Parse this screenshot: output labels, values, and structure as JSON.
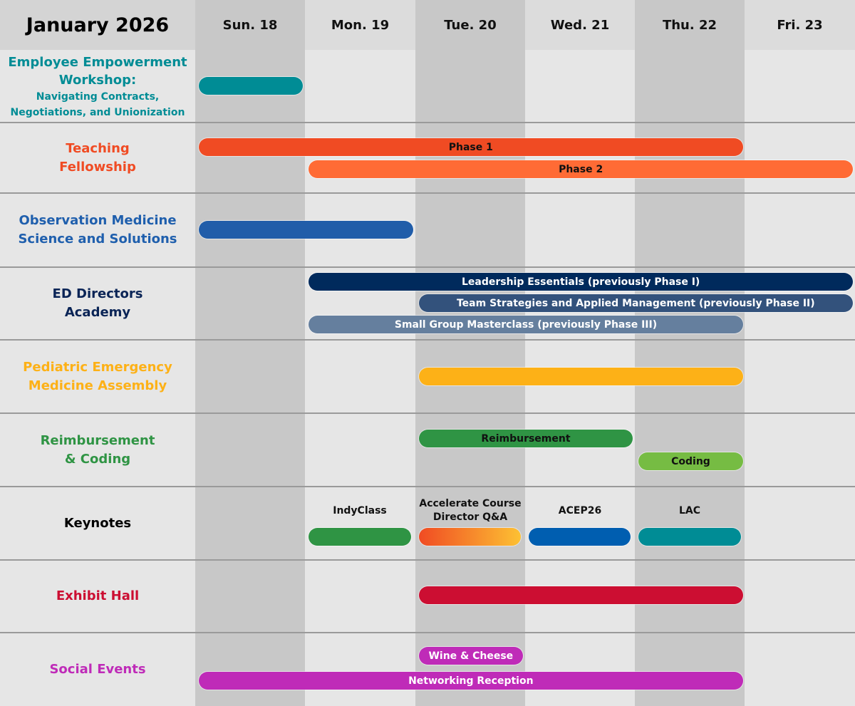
{
  "title": "January 2026",
  "days": [
    "Sun. 18",
    "Mon. 19",
    "Tue. 20",
    "Wed. 21",
    "Thu. 22",
    "Fri. 23"
  ],
  "colors": {
    "light_column": "#e6e6e6",
    "dark_column": "#c8c8c8",
    "header_light": "#dcdcdc",
    "header_left": "#d4d4d4",
    "separator": "#9a9a9a"
  },
  "rows": [
    {
      "label_lines": [
        "Employee Empowerment",
        "Workshop:"
      ],
      "sub_lines": [
        "Navigating Contracts,",
        "Negotiations, and Unionization"
      ],
      "color": "#008c95",
      "bars": [
        {
          "label": "",
          "start": 0,
          "end": 0,
          "color": "#008c95",
          "text_color": "#fff"
        }
      ]
    },
    {
      "label_lines": [
        "Teaching",
        "Fellowship"
      ],
      "color": "#f04b23",
      "bars": [
        {
          "label": "Phase 1",
          "start": 0,
          "end": 4,
          "color": "#f04b23",
          "text_color": "#111"
        },
        {
          "label": "Phase 2",
          "start": 1,
          "end": 5,
          "color": "#ff6b35",
          "text_color": "#111"
        }
      ]
    },
    {
      "label_lines": [
        "Observation Medicine",
        "Science and Solutions"
      ],
      "color": "#1f5fad",
      "bars": [
        {
          "label": "",
          "start": 0,
          "end": 1,
          "color": "#215da9",
          "text_color": "#fff"
        }
      ]
    },
    {
      "label_lines": [
        "ED Directors",
        "Academy"
      ],
      "color": "#0a2456",
      "bars": [
        {
          "label": "Leadership Essentials (previously Phase I)",
          "start": 1,
          "end": 5,
          "color": "#002a5c",
          "text_color": "#fff"
        },
        {
          "label": "Team Strategies and Applied Management (previously Phase II)",
          "start": 2,
          "end": 5,
          "color": "#33527c",
          "text_color": "#fff"
        },
        {
          "label": "Small Group Masterclass (previously Phase III)",
          "start": 1,
          "end": 4,
          "color": "#657f9e",
          "text_color": "#fff"
        }
      ]
    },
    {
      "label_lines": [
        "Pediatric Emergency",
        "Medicine Assembly"
      ],
      "color": "#fdb117",
      "bars": [
        {
          "label": "",
          "start": 2,
          "end": 4,
          "color": "#fdb117",
          "text_color": "#111"
        }
      ]
    },
    {
      "label_lines": [
        "Reimbursement",
        "& Coding"
      ],
      "color": "#2f9444",
      "bars": [
        {
          "label": "Reimbursement",
          "start": 2,
          "end": 3,
          "color": "#2f9444",
          "text_color": "#111"
        },
        {
          "label": "Coding",
          "start": 4,
          "end": 4,
          "color": "#76bc43",
          "text_color": "#111"
        }
      ]
    },
    {
      "label_lines": [
        "Keynotes"
      ],
      "color": "#000000",
      "bars": [
        {
          "label": "IndyClass",
          "start": 1,
          "end": 1,
          "color": "#2f9444",
          "text_color": "#111"
        },
        {
          "label": "Accelerate Course Director Q&A",
          "start": 2,
          "end": 2,
          "color": "linear-gradient(90deg,#f04b23,#fdc133)",
          "text_color": "#111"
        },
        {
          "label": "ACEP26",
          "start": 3,
          "end": 3,
          "color": "#005eb0",
          "text_color": "#111"
        },
        {
          "label": "LAC",
          "start": 4,
          "end": 4,
          "color": "#008c95",
          "text_color": "#111"
        }
      ]
    },
    {
      "label_lines": [
        "Exhibit Hall"
      ],
      "color": "#cc0e32",
      "bars": [
        {
          "label": "",
          "start": 2,
          "end": 4,
          "color": "#cc0e32",
          "text_color": "#fff"
        }
      ]
    },
    {
      "label_lines": [
        "Social Events"
      ],
      "color": "#bf2bb8",
      "bars": [
        {
          "label": "Wine & Cheese",
          "start": 2,
          "end": 2,
          "color": "#bf2bb8",
          "text_color": "#fff"
        },
        {
          "label": "Networking Reception",
          "start": 0,
          "end": 4,
          "color": "#bf2bb8",
          "text_color": "#fff"
        }
      ]
    }
  ]
}
